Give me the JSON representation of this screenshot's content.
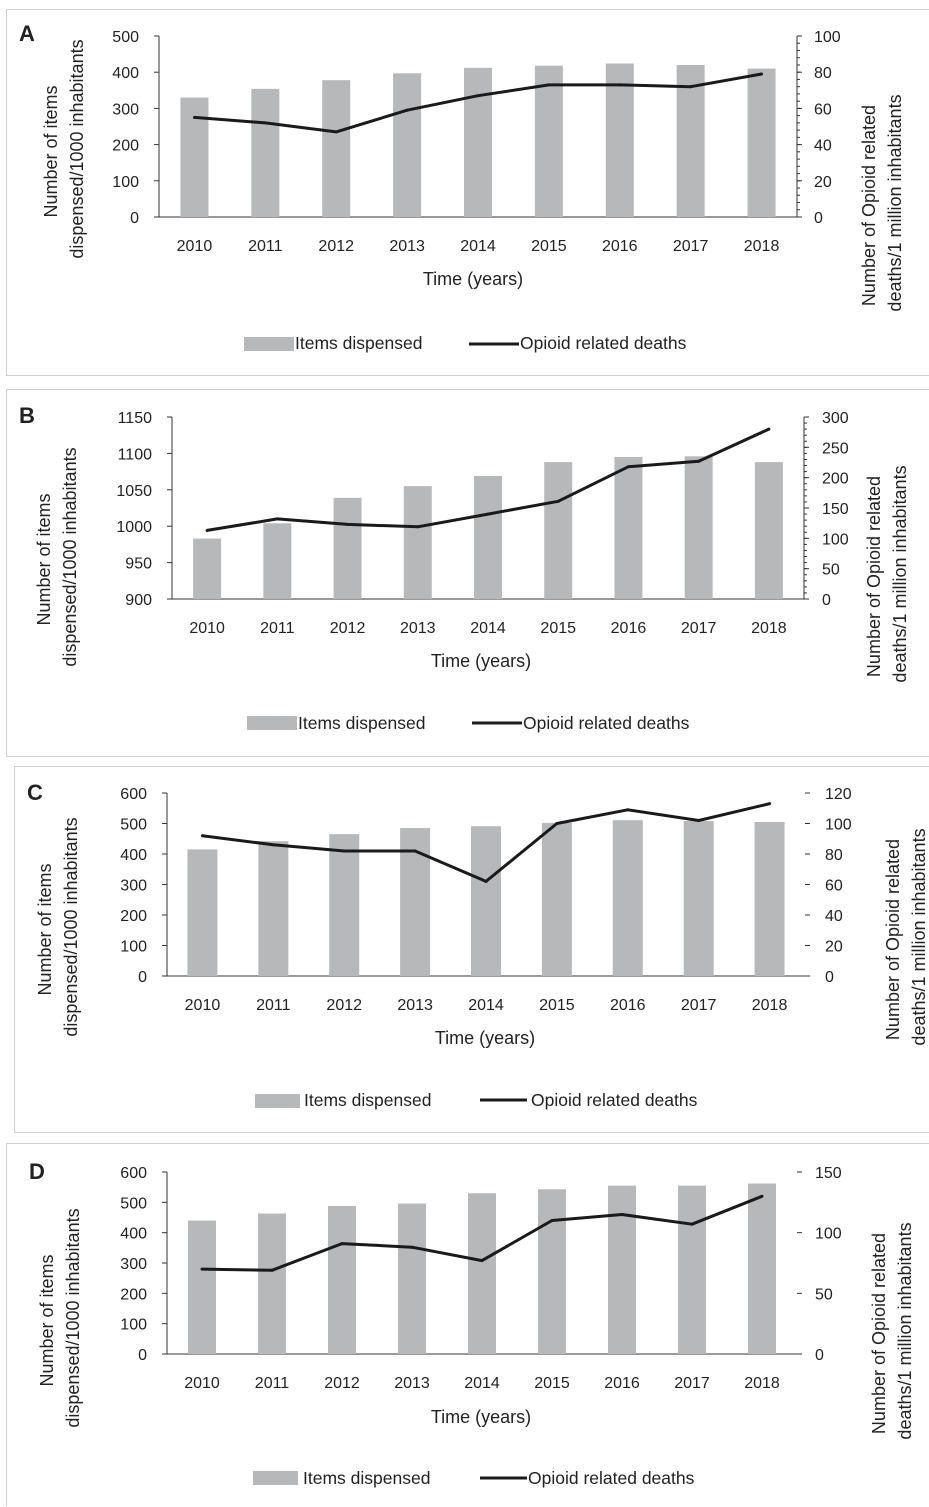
{
  "chart_data": [
    {
      "panel": "A",
      "type": "bar",
      "categories": [
        "2010",
        "2011",
        "2012",
        "2013",
        "2014",
        "2015",
        "2016",
        "2017",
        "2018"
      ],
      "series": [
        {
          "name": "Items dispensed",
          "type": "bar",
          "axis": "left",
          "color": "#b7b8ba",
          "values": [
            330,
            354,
            378,
            397,
            412,
            418,
            424,
            420,
            410
          ]
        },
        {
          "name": "Opioid related deaths",
          "type": "line",
          "axis": "right",
          "color": "#1a1a1a",
          "values": [
            55,
            52,
            47,
            59,
            67,
            73,
            73,
            72,
            79
          ]
        }
      ],
      "ylim_left": [
        0,
        500
      ],
      "yticks_left": [
        "0",
        "100",
        "200",
        "300",
        "400",
        "500"
      ],
      "ylim_right": [
        0,
        100
      ],
      "yticks_right": [
        "0",
        "20",
        "40",
        "60",
        "80",
        "100"
      ],
      "xlabel": "Time (years)",
      "ylabel_left": [
        "Number of items",
        "dispensed/1000 inhabitants"
      ],
      "ylabel_right": [
        "Number of Opioid related",
        "deaths/1 million inhabitants"
      ],
      "legend": [
        "Items dispensed",
        "Opioid related deaths"
      ],
      "legend_position": "bottom"
    },
    {
      "panel": "B",
      "type": "bar",
      "categories": [
        "2010",
        "2011",
        "2012",
        "2013",
        "2014",
        "2015",
        "2016",
        "2017",
        "2018"
      ],
      "series": [
        {
          "name": "Items dispensed",
          "type": "bar",
          "axis": "left",
          "color": "#b7b8ba",
          "values": [
            983,
            1004,
            1039,
            1055,
            1069,
            1088,
            1095,
            1096,
            1088
          ]
        },
        {
          "name": "Opioid related deaths",
          "type": "line",
          "axis": "right",
          "color": "#1a1a1a",
          "values": [
            113,
            132,
            123,
            119,
            140,
            161,
            218,
            227,
            280
          ]
        }
      ],
      "ylim_left": [
        900,
        1150
      ],
      "yticks_left": [
        "900",
        "950",
        "1000",
        "1050",
        "1100",
        "1150"
      ],
      "ylim_right": [
        0,
        300
      ],
      "yticks_right": [
        "0",
        "50",
        "100",
        "150",
        "200",
        "250",
        "300"
      ],
      "xlabel": "Time (years)",
      "ylabel_left": [
        "Number of items",
        "dispensed/1000 inhabitants"
      ],
      "ylabel_right": [
        "Number of Opioid related",
        "deaths/1 million inhabitants"
      ],
      "legend": [
        "Items dispensed",
        "Opioid related deaths"
      ],
      "legend_position": "bottom"
    },
    {
      "panel": "C",
      "type": "bar",
      "categories": [
        "2010",
        "2011",
        "2012",
        "2013",
        "2014",
        "2015",
        "2016",
        "2017",
        "2018"
      ],
      "series": [
        {
          "name": "Items dispensed",
          "type": "bar",
          "axis": "left",
          "color": "#b7b8ba",
          "values": [
            415,
            442,
            465,
            485,
            491,
            502,
            511,
            508,
            505
          ]
        },
        {
          "name": "Opioid related deaths",
          "type": "line",
          "axis": "right",
          "color": "#1a1a1a",
          "values": [
            92,
            86,
            82,
            82,
            62,
            100,
            109,
            102,
            113
          ]
        }
      ],
      "ylim_left": [
        0,
        600
      ],
      "yticks_left": [
        "0",
        "100",
        "200",
        "300",
        "400",
        "500",
        "600"
      ],
      "ylim_right": [
        0,
        120
      ],
      "yticks_right": [
        "0",
        "20",
        "40",
        "60",
        "80",
        "100",
        "120"
      ],
      "xlabel": "Time (years)",
      "ylabel_left": [
        "Number of items",
        "dispensed/1000 inhabitants"
      ],
      "ylabel_right": [
        "Number of Opioid related",
        "deaths/1 million inhabitants"
      ],
      "legend": [
        "Items dispensed",
        "Opioid related deaths"
      ],
      "legend_position": "bottom"
    },
    {
      "panel": "D",
      "type": "bar",
      "categories": [
        "2010",
        "2011",
        "2012",
        "2013",
        "2014",
        "2015",
        "2016",
        "2017",
        "2018"
      ],
      "series": [
        {
          "name": "Items dispensed",
          "type": "bar",
          "axis": "left",
          "color": "#b7b8ba",
          "values": [
            440,
            463,
            488,
            496,
            530,
            543,
            555,
            555,
            562
          ]
        },
        {
          "name": "Opioid related deaths",
          "type": "line",
          "axis": "right",
          "color": "#1a1a1a",
          "values": [
            70,
            69,
            91,
            88,
            77,
            110,
            115,
            107,
            130
          ]
        }
      ],
      "ylim_left": [
        0,
        600
      ],
      "yticks_left": [
        "0",
        "100",
        "200",
        "300",
        "400",
        "500",
        "600"
      ],
      "ylim_right": [
        0,
        150
      ],
      "yticks_right": [
        "0",
        "50",
        "100",
        "150"
      ],
      "xlabel": "Time (years)",
      "ylabel_left": [
        "Number of items",
        "dispensed/1000 inhabitants"
      ],
      "ylabel_right": [
        "Number of Opioid related",
        "deaths/1 million inhabitants"
      ],
      "legend": [
        "Items dispensed",
        "Opioid related deaths"
      ],
      "legend_position": "bottom"
    }
  ]
}
